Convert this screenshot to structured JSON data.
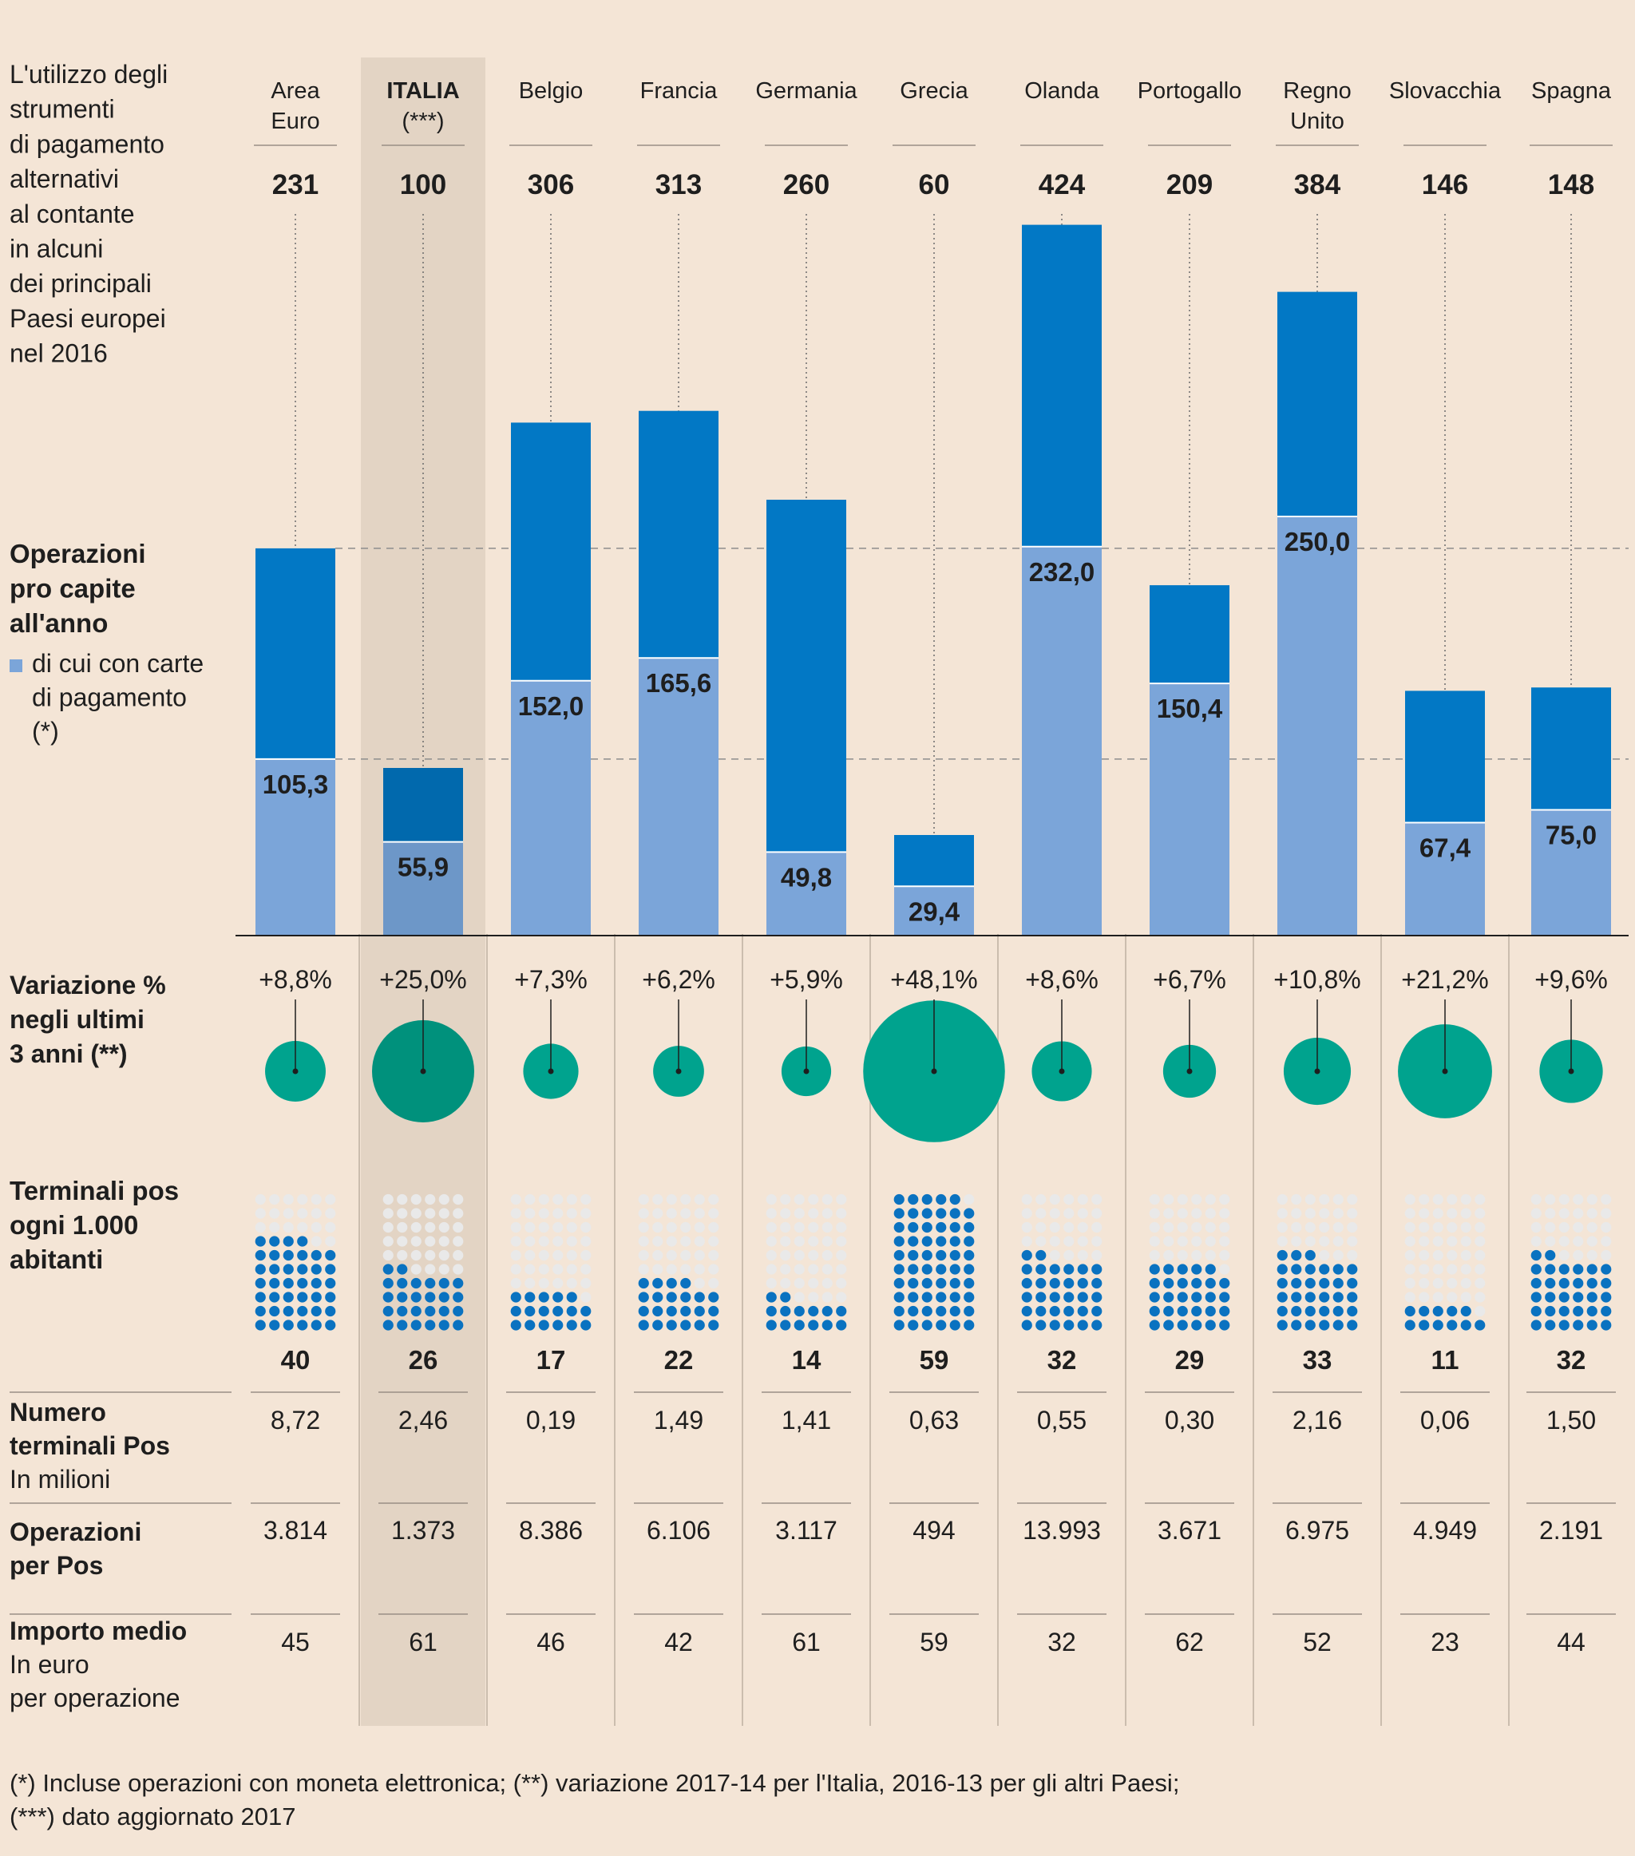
{
  "chart_data": {
    "type": "bar",
    "title": "L'utilizzo degli strumenti di pagamento alternativi al contante in alcuni dei principali Paesi europei nel 2016",
    "title_lines": [
      "L'utilizzo degli",
      "strumenti",
      "di pagamento",
      "alternativi",
      "al contante",
      "in alcuni",
      "dei principali",
      "Paesi europei",
      "nel 2016"
    ],
    "highlight_index": 1,
    "countries": [
      {
        "name_lines": [
          "Area",
          "Euro"
        ],
        "total": "231",
        "total_value": 231,
        "cards": "105,3",
        "cards_value": 105.3,
        "variation": "+8,8%",
        "variation_value": 8.8,
        "pos_per_1000": "40",
        "pos_value": 40,
        "terminals_millions": "8,72",
        "ops_per_pos": "3.814",
        "avg_amount": "45"
      },
      {
        "name_lines": [
          "ITALIA",
          "(***)"
        ],
        "total": "100",
        "total_value": 100,
        "cards": "55,9",
        "cards_value": 55.9,
        "variation": "+25,0%",
        "variation_value": 25.0,
        "pos_per_1000": "26",
        "pos_value": 26,
        "terminals_millions": "2,46",
        "ops_per_pos": "1.373",
        "avg_amount": "61"
      },
      {
        "name_lines": [
          "Belgio"
        ],
        "total": "306",
        "total_value": 306,
        "cards": "152,0",
        "cards_value": 152.0,
        "variation": "+7,3%",
        "variation_value": 7.3,
        "pos_per_1000": "17",
        "pos_value": 17,
        "terminals_millions": "0,19",
        "ops_per_pos": "8.386",
        "avg_amount": "46"
      },
      {
        "name_lines": [
          "Francia"
        ],
        "total": "313",
        "total_value": 313,
        "cards": "165,6",
        "cards_value": 165.6,
        "variation": "+6,2%",
        "variation_value": 6.2,
        "pos_per_1000": "22",
        "pos_value": 22,
        "terminals_millions": "1,49",
        "ops_per_pos": "6.106",
        "avg_amount": "42"
      },
      {
        "name_lines": [
          "Germania"
        ],
        "total": "260",
        "total_value": 260,
        "cards": "49,8",
        "cards_value": 49.8,
        "variation": "+5,9%",
        "variation_value": 5.9,
        "pos_per_1000": "14",
        "pos_value": 14,
        "terminals_millions": "1,41",
        "ops_per_pos": "3.117",
        "avg_amount": "61"
      },
      {
        "name_lines": [
          "Grecia"
        ],
        "total": "60",
        "total_value": 60,
        "cards": "29,4",
        "cards_value": 29.4,
        "variation": "+48,1%",
        "variation_value": 48.1,
        "pos_per_1000": "59",
        "pos_value": 59,
        "terminals_millions": "0,63",
        "ops_per_pos": "494",
        "avg_amount": "59"
      },
      {
        "name_lines": [
          "Olanda"
        ],
        "total": "424",
        "total_value": 424,
        "cards": "232,0",
        "cards_value": 232.0,
        "variation": "+8,6%",
        "variation_value": 8.6,
        "pos_per_1000": "32",
        "pos_value": 32,
        "terminals_millions": "0,55",
        "ops_per_pos": "13.993",
        "avg_amount": "32"
      },
      {
        "name_lines": [
          "Portogallo"
        ],
        "total": "209",
        "total_value": 209,
        "cards": "150,4",
        "cards_value": 150.4,
        "variation": "+6,7%",
        "variation_value": 6.7,
        "pos_per_1000": "29",
        "pos_value": 29,
        "terminals_millions": "0,30",
        "ops_per_pos": "3.671",
        "avg_amount": "62"
      },
      {
        "name_lines": [
          "Regno",
          "Unito"
        ],
        "total": "384",
        "total_value": 384,
        "cards": "250,0",
        "cards_value": 250.0,
        "variation": "+10,8%",
        "variation_value": 10.8,
        "pos_per_1000": "33",
        "pos_value": 33,
        "terminals_millions": "2,16",
        "ops_per_pos": "6.975",
        "avg_amount": "52"
      },
      {
        "name_lines": [
          "Slovacchia"
        ],
        "total": "146",
        "total_value": 146,
        "cards": "67,4",
        "cards_value": 67.4,
        "variation": "+21,2%",
        "variation_value": 21.2,
        "pos_per_1000": "11",
        "pos_value": 11,
        "terminals_millions": "0,06",
        "ops_per_pos": "4.949",
        "avg_amount": "23"
      },
      {
        "name_lines": [
          "Spagna"
        ],
        "total": "148",
        "total_value": 148,
        "cards": "75,0",
        "cards_value": 75.0,
        "variation": "+9,6%",
        "variation_value": 9.6,
        "pos_per_1000": "32",
        "pos_value": 32,
        "terminals_millions": "1,50",
        "ops_per_pos": "2.191",
        "avg_amount": "44"
      }
    ],
    "sections": {
      "operations": {
        "label_lines": [
          "Operazioni",
          "pro capite",
          "all'anno"
        ],
        "legend_lines": [
          "di cui con carte",
          "di pagamento",
          "(*)"
        ]
      },
      "variation": {
        "label_lines": [
          "Variazione %",
          "negli ultimi",
          "3 anni (**)"
        ]
      },
      "pos": {
        "label_lines": [
          "Terminali pos",
          "ogni 1.000",
          "abitanti"
        ]
      },
      "terminals": {
        "label_bold_lines": [
          "Numero",
          "terminali Pos"
        ],
        "label_normal_lines": [
          "In milioni"
        ]
      },
      "ops_per_pos": {
        "label_bold_lines": [
          "Operazioni",
          "per Pos"
        ]
      },
      "avg_amount": {
        "label_bold_lines": [
          "Importo medio"
        ],
        "label_normal_lines": [
          "In euro",
          "per operazione"
        ]
      }
    },
    "colors": {
      "background": "#f4e5d6",
      "highlight_column": "#e3d4c4",
      "bar_total": "#0278c5",
      "bar_total_highlight": "#0169ad",
      "bar_cards": "#7ba5d9",
      "bar_cards_highlight": "#6d97c8",
      "circle": "#00a38e",
      "circle_highlight": "#00917c",
      "dot_filled": "#0a72c0",
      "dot_empty": "#e9e9e9"
    },
    "footnotes": [
      "(*) Incluse operazioni con moneta elettronica; (**) variazione 2017-14 per l'Italia, 2016-13 per gli altri Paesi;",
      "(***) dato aggiornato 2017"
    ]
  }
}
